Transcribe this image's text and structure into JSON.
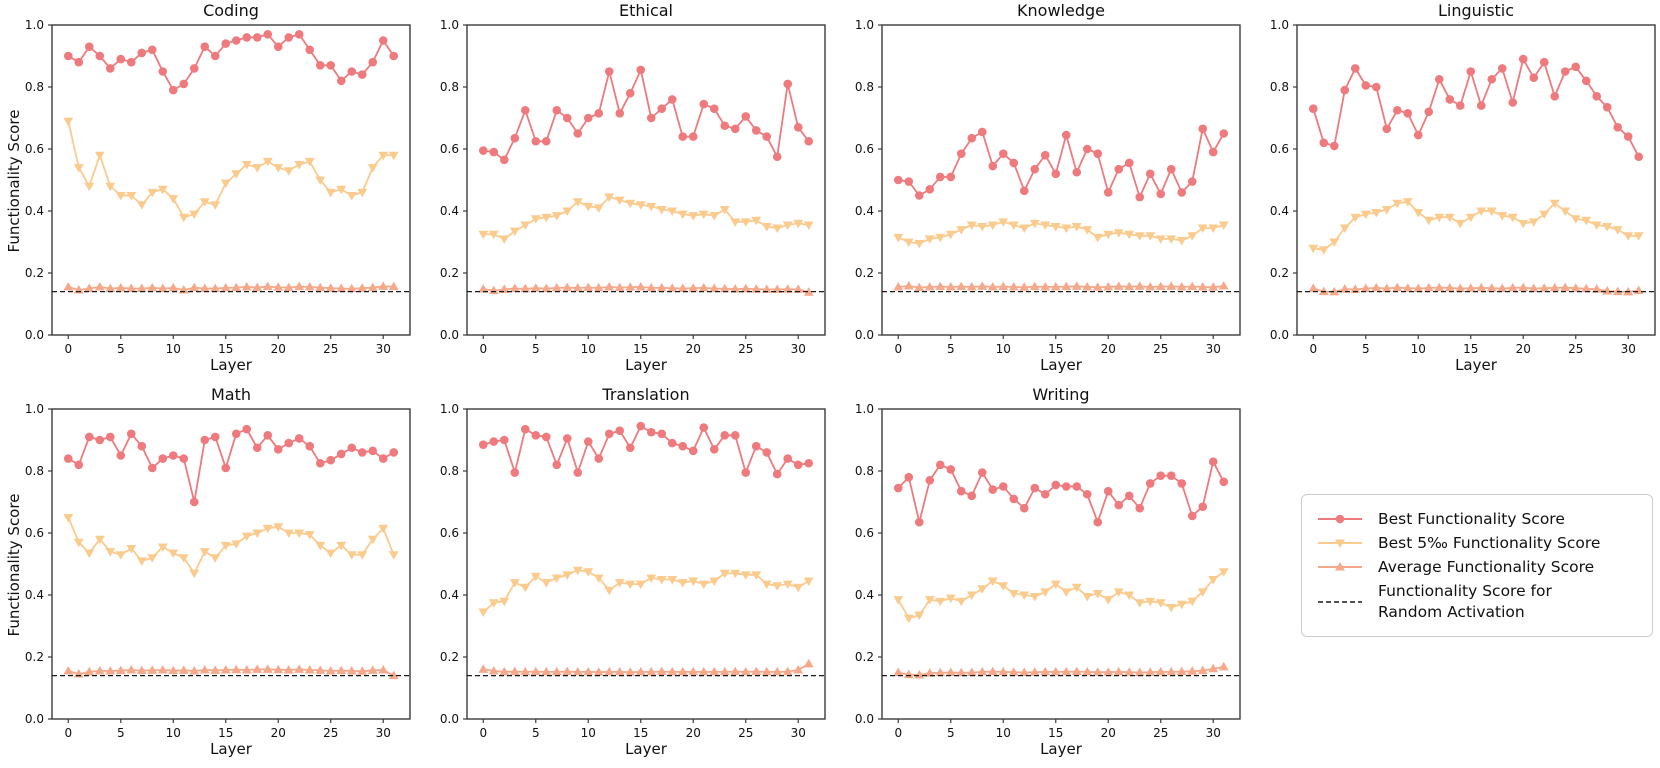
{
  "figure": {
    "xlabel": "Layer",
    "ylabel": "Functionality Score",
    "x": [
      0,
      1,
      2,
      3,
      4,
      5,
      6,
      7,
      8,
      9,
      10,
      11,
      12,
      13,
      14,
      15,
      16,
      17,
      18,
      19,
      20,
      21,
      22,
      23,
      24,
      25,
      26,
      27,
      28,
      29,
      30,
      31
    ],
    "x_ticks": [
      0,
      5,
      10,
      15,
      20,
      25,
      30
    ],
    "y_ticks": [
      "0.0",
      "0.2",
      "0.4",
      "0.6",
      "0.8",
      "1.0"
    ],
    "xlim": [
      -1.55,
      32.55
    ],
    "ylim": [
      0,
      1
    ],
    "grid": false,
    "legend_position": "bottom-right-cell"
  },
  "colors": {
    "best": "#ee7a7e",
    "best5": "#fbca8d",
    "average": "#f6a88b",
    "random": "#1a1a1a",
    "spine": "#3b3b3b"
  },
  "legend": {
    "items": [
      {
        "label": "Best Functionality Score",
        "marker": "circle",
        "color_key": "best"
      },
      {
        "label": "Best 5‰ Functionality Score",
        "marker": "triangle-down",
        "color_key": "best5"
      },
      {
        "label": "Average Functionality Score",
        "marker": "triangle-up",
        "color_key": "average"
      },
      {
        "label": "Functionality Score for\nRandom Activation",
        "marker": "dashed-line",
        "color_key": "random"
      }
    ]
  },
  "chart_data": [
    {
      "type": "line",
      "title": "Coding",
      "show_ylabel": true,
      "random_baseline": 0.14,
      "series": [
        {
          "name": "Best Functionality Score",
          "values": [
            0.9,
            0.88,
            0.93,
            0.9,
            0.86,
            0.89,
            0.88,
            0.91,
            0.92,
            0.85,
            0.79,
            0.81,
            0.86,
            0.93,
            0.9,
            0.94,
            0.95,
            0.96,
            0.96,
            0.97,
            0.93,
            0.96,
            0.97,
            0.92,
            0.87,
            0.87,
            0.82,
            0.85,
            0.84,
            0.88,
            0.95,
            0.9
          ]
        },
        {
          "name": "Best 5‰ Functionality Score",
          "values": [
            0.69,
            0.54,
            0.48,
            0.58,
            0.48,
            0.45,
            0.45,
            0.42,
            0.46,
            0.47,
            0.44,
            0.38,
            0.39,
            0.43,
            0.42,
            0.49,
            0.52,
            0.55,
            0.54,
            0.56,
            0.54,
            0.53,
            0.55,
            0.56,
            0.5,
            0.46,
            0.47,
            0.45,
            0.46,
            0.54,
            0.58,
            0.58
          ]
        },
        {
          "name": "Average Functionality Score",
          "values": [
            0.155,
            0.145,
            0.15,
            0.155,
            0.15,
            0.152,
            0.15,
            0.15,
            0.152,
            0.15,
            0.152,
            0.145,
            0.153,
            0.15,
            0.15,
            0.152,
            0.153,
            0.155,
            0.153,
            0.156,
            0.154,
            0.153,
            0.156,
            0.155,
            0.153,
            0.151,
            0.15,
            0.149,
            0.151,
            0.153,
            0.157,
            0.156
          ]
        }
      ]
    },
    {
      "type": "line",
      "title": "Ethical",
      "show_ylabel": false,
      "random_baseline": 0.14,
      "series": [
        {
          "name": "Best Functionality Score",
          "values": [
            0.595,
            0.59,
            0.565,
            0.635,
            0.725,
            0.625,
            0.625,
            0.725,
            0.7,
            0.65,
            0.7,
            0.715,
            0.85,
            0.715,
            0.78,
            0.855,
            0.7,
            0.73,
            0.76,
            0.64,
            0.64,
            0.745,
            0.73,
            0.675,
            0.665,
            0.705,
            0.66,
            0.64,
            0.575,
            0.81,
            0.67,
            0.625
          ]
        },
        {
          "name": "Best 5‰ Functionality Score",
          "values": [
            0.325,
            0.325,
            0.31,
            0.335,
            0.355,
            0.375,
            0.38,
            0.385,
            0.4,
            0.43,
            0.415,
            0.41,
            0.445,
            0.435,
            0.425,
            0.42,
            0.415,
            0.405,
            0.4,
            0.39,
            0.385,
            0.39,
            0.385,
            0.405,
            0.365,
            0.365,
            0.37,
            0.35,
            0.345,
            0.355,
            0.36,
            0.355
          ]
        },
        {
          "name": "Average Functionality Score",
          "values": [
            0.148,
            0.143,
            0.147,
            0.15,
            0.149,
            0.151,
            0.15,
            0.152,
            0.153,
            0.152,
            0.153,
            0.152,
            0.155,
            0.153,
            0.154,
            0.155,
            0.152,
            0.152,
            0.151,
            0.15,
            0.151,
            0.152,
            0.15,
            0.149,
            0.148,
            0.149,
            0.148,
            0.147,
            0.147,
            0.148,
            0.147,
            0.138
          ]
        }
      ]
    },
    {
      "type": "line",
      "title": "Knowledge",
      "show_ylabel": false,
      "random_baseline": 0.14,
      "series": [
        {
          "name": "Best Functionality Score",
          "values": [
            0.5,
            0.495,
            0.45,
            0.47,
            0.51,
            0.51,
            0.585,
            0.635,
            0.655,
            0.545,
            0.585,
            0.555,
            0.465,
            0.535,
            0.58,
            0.52,
            0.645,
            0.525,
            0.6,
            0.585,
            0.46,
            0.535,
            0.555,
            0.445,
            0.52,
            0.455,
            0.535,
            0.46,
            0.495,
            0.665,
            0.59,
            0.65
          ]
        },
        {
          "name": "Best 5‰ Functionality Score",
          "values": [
            0.315,
            0.3,
            0.295,
            0.31,
            0.315,
            0.325,
            0.34,
            0.355,
            0.35,
            0.355,
            0.365,
            0.355,
            0.345,
            0.36,
            0.355,
            0.35,
            0.345,
            0.35,
            0.34,
            0.315,
            0.325,
            0.33,
            0.325,
            0.32,
            0.32,
            0.31,
            0.31,
            0.305,
            0.32,
            0.345,
            0.345,
            0.355
          ]
        },
        {
          "name": "Average Functionality Score",
          "values": [
            0.155,
            0.158,
            0.153,
            0.155,
            0.156,
            0.155,
            0.156,
            0.155,
            0.157,
            0.155,
            0.156,
            0.155,
            0.154,
            0.156,
            0.155,
            0.155,
            0.156,
            0.157,
            0.155,
            0.154,
            0.155,
            0.157,
            0.156,
            0.157,
            0.155,
            0.156,
            0.157,
            0.155,
            0.156,
            0.155,
            0.154,
            0.158
          ]
        }
      ]
    },
    {
      "type": "line",
      "title": "Linguistic",
      "show_ylabel": false,
      "random_baseline": 0.14,
      "series": [
        {
          "name": "Best Functionality Score",
          "values": [
            0.73,
            0.62,
            0.61,
            0.79,
            0.86,
            0.805,
            0.8,
            0.665,
            0.725,
            0.715,
            0.645,
            0.72,
            0.825,
            0.76,
            0.74,
            0.85,
            0.74,
            0.825,
            0.86,
            0.75,
            0.89,
            0.83,
            0.88,
            0.77,
            0.85,
            0.865,
            0.82,
            0.77,
            0.735,
            0.67,
            0.64,
            0.575
          ]
        },
        {
          "name": "Best 5‰ Functionality Score",
          "values": [
            0.28,
            0.275,
            0.3,
            0.345,
            0.38,
            0.39,
            0.395,
            0.405,
            0.425,
            0.43,
            0.395,
            0.37,
            0.38,
            0.38,
            0.36,
            0.38,
            0.4,
            0.4,
            0.385,
            0.38,
            0.36,
            0.365,
            0.39,
            0.425,
            0.4,
            0.375,
            0.37,
            0.355,
            0.35,
            0.34,
            0.32,
            0.32
          ]
        },
        {
          "name": "Average Functionality Score",
          "values": [
            0.15,
            0.14,
            0.139,
            0.148,
            0.147,
            0.15,
            0.152,
            0.15,
            0.153,
            0.151,
            0.15,
            0.152,
            0.153,
            0.152,
            0.15,
            0.151,
            0.152,
            0.151,
            0.15,
            0.152,
            0.153,
            0.15,
            0.151,
            0.152,
            0.153,
            0.151,
            0.149,
            0.148,
            0.142,
            0.14,
            0.139,
            0.143
          ]
        }
      ]
    },
    {
      "type": "line",
      "title": "Math",
      "show_ylabel": true,
      "random_baseline": 0.14,
      "series": [
        {
          "name": "Best Functionality Score",
          "values": [
            0.84,
            0.82,
            0.91,
            0.9,
            0.91,
            0.85,
            0.92,
            0.88,
            0.81,
            0.84,
            0.85,
            0.84,
            0.7,
            0.9,
            0.91,
            0.81,
            0.92,
            0.935,
            0.875,
            0.915,
            0.87,
            0.89,
            0.905,
            0.88,
            0.825,
            0.835,
            0.855,
            0.875,
            0.86,
            0.865,
            0.84,
            0.86
          ]
        },
        {
          "name": "Best 5‰ Functionality Score",
          "values": [
            0.65,
            0.57,
            0.535,
            0.58,
            0.54,
            0.53,
            0.55,
            0.51,
            0.52,
            0.555,
            0.535,
            0.52,
            0.47,
            0.54,
            0.52,
            0.56,
            0.565,
            0.59,
            0.6,
            0.615,
            0.62,
            0.6,
            0.6,
            0.595,
            0.56,
            0.535,
            0.56,
            0.53,
            0.53,
            0.58,
            0.615,
            0.53
          ]
        },
        {
          "name": "Average Functionality Score",
          "values": [
            0.155,
            0.145,
            0.152,
            0.155,
            0.155,
            0.156,
            0.158,
            0.156,
            0.157,
            0.158,
            0.156,
            0.157,
            0.155,
            0.158,
            0.157,
            0.158,
            0.159,
            0.158,
            0.16,
            0.16,
            0.159,
            0.158,
            0.16,
            0.158,
            0.157,
            0.155,
            0.156,
            0.155,
            0.154,
            0.157,
            0.158,
            0.14
          ]
        }
      ]
    },
    {
      "type": "line",
      "title": "Translation",
      "show_ylabel": false,
      "random_baseline": 0.14,
      "series": [
        {
          "name": "Best Functionality Score",
          "values": [
            0.885,
            0.895,
            0.9,
            0.795,
            0.935,
            0.915,
            0.91,
            0.82,
            0.905,
            0.795,
            0.895,
            0.84,
            0.92,
            0.93,
            0.875,
            0.945,
            0.925,
            0.92,
            0.89,
            0.88,
            0.865,
            0.94,
            0.87,
            0.915,
            0.915,
            0.795,
            0.88,
            0.86,
            0.79,
            0.84,
            0.82,
            0.825
          ]
        },
        {
          "name": "Best 5‰ Functionality Score",
          "values": [
            0.345,
            0.375,
            0.38,
            0.44,
            0.425,
            0.46,
            0.44,
            0.455,
            0.465,
            0.48,
            0.475,
            0.455,
            0.415,
            0.44,
            0.435,
            0.435,
            0.455,
            0.45,
            0.45,
            0.44,
            0.445,
            0.435,
            0.445,
            0.47,
            0.47,
            0.465,
            0.465,
            0.435,
            0.43,
            0.435,
            0.425,
            0.445
          ]
        },
        {
          "name": "Average Functionality Score",
          "values": [
            0.16,
            0.155,
            0.152,
            0.153,
            0.152,
            0.153,
            0.152,
            0.152,
            0.153,
            0.152,
            0.152,
            0.151,
            0.152,
            0.152,
            0.151,
            0.152,
            0.152,
            0.153,
            0.152,
            0.152,
            0.152,
            0.152,
            0.152,
            0.152,
            0.153,
            0.152,
            0.153,
            0.152,
            0.152,
            0.153,
            0.158,
            0.178
          ]
        }
      ]
    },
    {
      "type": "line",
      "title": "Writing",
      "show_ylabel": false,
      "random_baseline": 0.14,
      "series": [
        {
          "name": "Best Functionality Score",
          "values": [
            0.745,
            0.78,
            0.635,
            0.77,
            0.82,
            0.805,
            0.735,
            0.72,
            0.795,
            0.74,
            0.75,
            0.71,
            0.68,
            0.745,
            0.725,
            0.755,
            0.75,
            0.75,
            0.725,
            0.635,
            0.735,
            0.69,
            0.72,
            0.68,
            0.76,
            0.785,
            0.785,
            0.76,
            0.655,
            0.685,
            0.83,
            0.765
          ]
        },
        {
          "name": "Best 5‰ Functionality Score",
          "values": [
            0.385,
            0.325,
            0.335,
            0.385,
            0.38,
            0.39,
            0.38,
            0.4,
            0.42,
            0.445,
            0.43,
            0.405,
            0.4,
            0.395,
            0.41,
            0.435,
            0.41,
            0.425,
            0.395,
            0.405,
            0.385,
            0.41,
            0.4,
            0.375,
            0.38,
            0.375,
            0.36,
            0.37,
            0.38,
            0.41,
            0.45,
            0.475
          ]
        },
        {
          "name": "Average Functionality Score",
          "values": [
            0.15,
            0.143,
            0.142,
            0.148,
            0.149,
            0.15,
            0.149,
            0.15,
            0.152,
            0.153,
            0.152,
            0.151,
            0.15,
            0.151,
            0.152,
            0.152,
            0.152,
            0.153,
            0.152,
            0.151,
            0.151,
            0.152,
            0.151,
            0.15,
            0.151,
            0.152,
            0.152,
            0.153,
            0.154,
            0.156,
            0.162,
            0.168
          ]
        }
      ]
    }
  ]
}
